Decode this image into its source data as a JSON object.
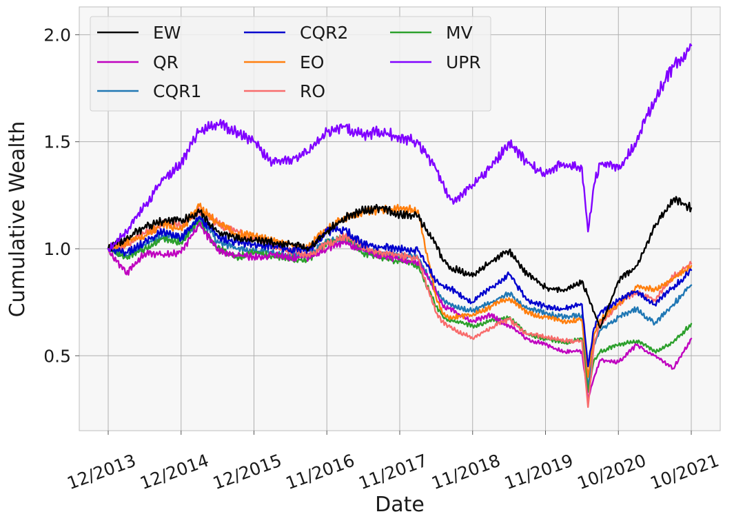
{
  "chart_data": {
    "type": "line",
    "title": "",
    "xlabel": "Date",
    "ylabel": "Cumulative Wealth",
    "x_ticks": [
      "12/2013",
      "12/2014",
      "12/2015",
      "11/2016",
      "11/2017",
      "11/2018",
      "11/2019",
      "10/2020",
      "10/2021"
    ],
    "ylim": [
      0.15,
      2.13
    ],
    "y_ticks": [
      0.5,
      1.0,
      1.5,
      2.0
    ],
    "y_tick_labels": [
      "0.5",
      "1.0",
      "1.5",
      "2.0"
    ],
    "grid": true,
    "legend": "top-left",
    "legend_columns": 3,
    "x_index_range": [
      0,
      96
    ],
    "series": [
      {
        "name": "EW",
        "color": "#000000",
        "x": [
          0,
          3,
          6,
          9,
          12,
          15,
          18,
          21,
          24,
          27,
          30,
          33,
          36,
          39,
          42,
          45,
          48,
          51,
          54,
          55,
          56,
          60,
          63,
          66,
          69,
          72,
          75,
          78,
          81,
          84,
          87,
          90,
          93,
          96
        ],
        "values": [
          1.0,
          1.05,
          1.1,
          1.13,
          1.13,
          1.17,
          1.08,
          1.05,
          1.04,
          1.03,
          1.02,
          1.0,
          1.08,
          1.15,
          1.18,
          1.19,
          1.16,
          1.15,
          1.02,
          0.95,
          0.92,
          0.87,
          0.94,
          0.99,
          0.88,
          0.82,
          0.8,
          0.85,
          0.63,
          0.85,
          0.92,
          1.1,
          1.23,
          1.19
        ]
      },
      {
        "name": "QR",
        "color": "#bf00bf",
        "x": [
          0,
          3,
          6,
          9,
          12,
          15,
          18,
          21,
          24,
          27,
          30,
          33,
          36,
          39,
          42,
          45,
          48,
          51,
          54,
          55,
          56,
          60,
          63,
          66,
          69,
          72,
          75,
          78,
          79,
          80,
          81,
          84,
          87,
          90,
          93,
          96
        ],
        "values": [
          1.0,
          0.88,
          0.98,
          0.97,
          0.98,
          1.12,
          0.99,
          0.97,
          0.96,
          0.97,
          0.96,
          0.96,
          1.0,
          1.03,
          0.99,
          0.97,
          0.95,
          0.94,
          0.8,
          0.74,
          0.72,
          0.66,
          0.69,
          0.64,
          0.58,
          0.55,
          0.52,
          0.52,
          0.3,
          0.4,
          0.48,
          0.47,
          0.55,
          0.5,
          0.44,
          0.58
        ]
      },
      {
        "name": "CQR1",
        "color": "#1f77b4",
        "x": [
          0,
          3,
          6,
          9,
          12,
          15,
          18,
          21,
          24,
          27,
          30,
          33,
          36,
          39,
          42,
          45,
          48,
          51,
          54,
          55,
          56,
          60,
          63,
          66,
          69,
          72,
          75,
          78,
          79,
          80,
          81,
          84,
          87,
          90,
          93,
          96
        ],
        "values": [
          1.0,
          0.97,
          1.02,
          1.06,
          1.04,
          1.14,
          1.04,
          1.0,
          0.99,
          0.98,
          0.97,
          0.97,
          1.03,
          1.05,
          0.99,
          0.98,
          0.97,
          0.96,
          0.8,
          0.76,
          0.74,
          0.71,
          0.75,
          0.79,
          0.72,
          0.7,
          0.68,
          0.69,
          0.35,
          0.55,
          0.62,
          0.68,
          0.72,
          0.65,
          0.74,
          0.83
        ]
      },
      {
        "name": "CQR2",
        "color": "#0000cd",
        "x": [
          0,
          3,
          6,
          9,
          12,
          15,
          18,
          21,
          24,
          27,
          30,
          33,
          36,
          39,
          42,
          45,
          48,
          51,
          54,
          55,
          56,
          60,
          63,
          66,
          69,
          72,
          75,
          78,
          79,
          80,
          81,
          84,
          87,
          90,
          93,
          96
        ],
        "values": [
          1.0,
          0.98,
          1.03,
          1.08,
          1.05,
          1.15,
          1.06,
          1.03,
          1.02,
          1.01,
          1.0,
          0.99,
          1.08,
          1.09,
          1.02,
          1.01,
          1.0,
          0.99,
          0.85,
          0.83,
          0.82,
          0.75,
          0.82,
          0.88,
          0.76,
          0.73,
          0.72,
          0.74,
          0.45,
          0.63,
          0.7,
          0.76,
          0.8,
          0.74,
          0.82,
          0.9
        ]
      },
      {
        "name": "EO",
        "color": "#ff7f0e",
        "x": [
          0,
          3,
          6,
          9,
          12,
          15,
          18,
          21,
          24,
          27,
          30,
          33,
          36,
          39,
          42,
          45,
          48,
          51,
          54,
          55,
          56,
          60,
          63,
          66,
          69,
          72,
          75,
          78,
          79,
          80,
          81,
          84,
          87,
          90,
          93,
          96
        ],
        "values": [
          1.0,
          1.03,
          1.06,
          1.12,
          1.09,
          1.2,
          1.12,
          1.07,
          1.06,
          1.04,
          1.02,
          1.01,
          1.1,
          1.14,
          1.17,
          1.18,
          1.19,
          1.18,
          0.77,
          0.7,
          0.68,
          0.69,
          0.73,
          0.77,
          0.7,
          0.68,
          0.66,
          0.67,
          0.4,
          0.6,
          0.67,
          0.74,
          0.82,
          0.81,
          0.86,
          0.92
        ]
      },
      {
        "name": "RO",
        "color": "#f86c6c",
        "x": [
          0,
          3,
          6,
          9,
          12,
          15,
          18,
          21,
          24,
          27,
          30,
          33,
          36,
          39,
          42,
          45,
          48,
          51,
          54,
          55,
          56,
          60,
          63,
          66,
          69,
          72,
          75,
          78,
          79,
          80,
          81,
          84,
          87,
          90,
          93,
          96
        ],
        "values": [
          1.0,
          1.02,
          1.07,
          1.12,
          1.11,
          1.18,
          1.12,
          1.08,
          1.05,
          1.02,
          0.99,
          0.97,
          1.02,
          1.06,
          1.01,
          0.98,
          0.97,
          0.95,
          0.7,
          0.66,
          0.64,
          0.58,
          0.63,
          0.67,
          0.6,
          0.59,
          0.57,
          0.57,
          0.26,
          0.55,
          0.65,
          0.74,
          0.8,
          0.76,
          0.87,
          0.93
        ]
      },
      {
        "name": "MV",
        "color": "#2ca02c",
        "x": [
          0,
          3,
          6,
          9,
          12,
          15,
          18,
          21,
          24,
          27,
          30,
          33,
          36,
          39,
          42,
          45,
          48,
          51,
          54,
          55,
          56,
          60,
          63,
          66,
          69,
          72,
          75,
          78,
          79,
          80,
          81,
          84,
          87,
          90,
          93,
          96
        ],
        "values": [
          1.0,
          0.96,
          1.0,
          1.05,
          1.03,
          1.13,
          1.0,
          0.96,
          0.98,
          0.97,
          0.95,
          0.95,
          1.03,
          1.05,
          0.98,
          0.96,
          0.94,
          0.92,
          0.73,
          0.69,
          0.67,
          0.64,
          0.66,
          0.68,
          0.6,
          0.58,
          0.56,
          0.58,
          0.33,
          0.48,
          0.52,
          0.55,
          0.57,
          0.52,
          0.56,
          0.65
        ]
      },
      {
        "name": "UPR",
        "color": "#8000ff",
        "x": [
          0,
          3,
          6,
          9,
          12,
          15,
          18,
          21,
          24,
          27,
          30,
          33,
          36,
          39,
          42,
          45,
          48,
          51,
          54,
          56,
          57,
          60,
          63,
          66,
          69,
          72,
          75,
          77,
          78,
          79,
          80,
          81,
          84,
          87,
          90,
          93,
          96
        ],
        "values": [
          1.0,
          1.08,
          1.2,
          1.32,
          1.4,
          1.55,
          1.58,
          1.55,
          1.5,
          1.4,
          1.42,
          1.45,
          1.55,
          1.57,
          1.53,
          1.55,
          1.52,
          1.5,
          1.37,
          1.25,
          1.22,
          1.3,
          1.38,
          1.5,
          1.4,
          1.35,
          1.4,
          1.38,
          1.38,
          1.08,
          1.3,
          1.4,
          1.37,
          1.5,
          1.7,
          1.85,
          1.95
        ]
      }
    ]
  }
}
